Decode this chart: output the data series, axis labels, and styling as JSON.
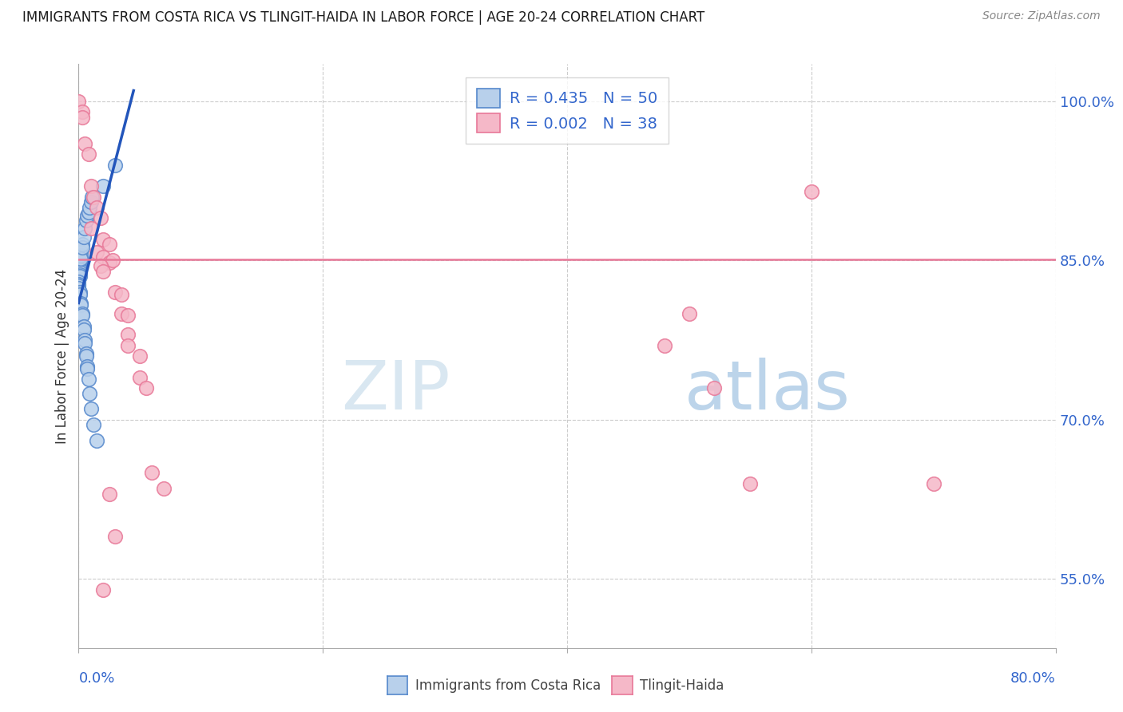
{
  "title": "IMMIGRANTS FROM COSTA RICA VS TLINGIT-HAIDA IN LABOR FORCE | AGE 20-24 CORRELATION CHART",
  "source": "Source: ZipAtlas.com",
  "ylabel": "In Labor Force | Age 20-24",
  "legend_blue_r": "R = 0.435",
  "legend_blue_n": "N = 50",
  "legend_pink_r": "R = 0.002",
  "legend_pink_n": "N = 38",
  "blue_face": "#b8d0eb",
  "blue_edge": "#5588cc",
  "pink_face": "#f5b8c8",
  "pink_edge": "#e87898",
  "blue_line_color": "#2255bb",
  "pink_line_color": "#e87898",
  "blue_scatter": [
    [
      0.0,
      0.84
    ],
    [
      0.0,
      0.838
    ],
    [
      0.0,
      0.836
    ],
    [
      0.0,
      0.834
    ],
    [
      0.001,
      0.85
    ],
    [
      0.001,
      0.848
    ],
    [
      0.001,
      0.845
    ],
    [
      0.001,
      0.843
    ],
    [
      0.001,
      0.841
    ],
    [
      0.001,
      0.839
    ],
    [
      0.001,
      0.837
    ],
    [
      0.001,
      0.835
    ],
    [
      0.002,
      0.858
    ],
    [
      0.002,
      0.855
    ],
    [
      0.002,
      0.852
    ],
    [
      0.003,
      0.865
    ],
    [
      0.003,
      0.862
    ],
    [
      0.004,
      0.872
    ],
    [
      0.005,
      0.88
    ],
    [
      0.006,
      0.888
    ],
    [
      0.007,
      0.892
    ],
    [
      0.008,
      0.895
    ],
    [
      0.009,
      0.9
    ],
    [
      0.01,
      0.905
    ],
    [
      0.011,
      0.91
    ],
    [
      0.0,
      0.83
    ],
    [
      0.0,
      0.828
    ],
    [
      0.0,
      0.826
    ],
    [
      0.0,
      0.824
    ],
    [
      0.001,
      0.82
    ],
    [
      0.001,
      0.818
    ],
    [
      0.002,
      0.81
    ],
    [
      0.002,
      0.808
    ],
    [
      0.003,
      0.8
    ],
    [
      0.003,
      0.798
    ],
    [
      0.004,
      0.788
    ],
    [
      0.004,
      0.785
    ],
    [
      0.005,
      0.775
    ],
    [
      0.005,
      0.772
    ],
    [
      0.006,
      0.762
    ],
    [
      0.006,
      0.76
    ],
    [
      0.007,
      0.75
    ],
    [
      0.007,
      0.748
    ],
    [
      0.008,
      0.738
    ],
    [
      0.009,
      0.725
    ],
    [
      0.01,
      0.71
    ],
    [
      0.012,
      0.695
    ],
    [
      0.015,
      0.68
    ],
    [
      0.02,
      0.92
    ],
    [
      0.03,
      0.94
    ]
  ],
  "pink_scatter": [
    [
      0.0,
      1.0
    ],
    [
      0.003,
      0.99
    ],
    [
      0.003,
      0.985
    ],
    [
      0.005,
      0.96
    ],
    [
      0.008,
      0.95
    ],
    [
      0.01,
      0.92
    ],
    [
      0.012,
      0.91
    ],
    [
      0.015,
      0.9
    ],
    [
      0.018,
      0.89
    ],
    [
      0.01,
      0.88
    ],
    [
      0.02,
      0.87
    ],
    [
      0.025,
      0.865
    ],
    [
      0.015,
      0.858
    ],
    [
      0.02,
      0.853
    ],
    [
      0.025,
      0.848
    ],
    [
      0.028,
      0.85
    ],
    [
      0.018,
      0.845
    ],
    [
      0.02,
      0.84
    ],
    [
      0.03,
      0.82
    ],
    [
      0.035,
      0.818
    ],
    [
      0.035,
      0.8
    ],
    [
      0.04,
      0.798
    ],
    [
      0.04,
      0.78
    ],
    [
      0.04,
      0.77
    ],
    [
      0.05,
      0.76
    ],
    [
      0.05,
      0.74
    ],
    [
      0.055,
      0.73
    ],
    [
      0.06,
      0.65
    ],
    [
      0.07,
      0.635
    ],
    [
      0.025,
      0.63
    ],
    [
      0.03,
      0.59
    ],
    [
      0.02,
      0.54
    ],
    [
      0.48,
      0.77
    ],
    [
      0.6,
      0.915
    ],
    [
      0.5,
      0.8
    ],
    [
      0.52,
      0.73
    ],
    [
      0.55,
      0.64
    ],
    [
      0.7,
      0.64
    ]
  ],
  "xmin": 0.0,
  "xmax": 0.8,
  "ymin": 0.485,
  "ymax": 1.035,
  "pink_hline_y": 0.851,
  "blue_trendline_x": [
    0.0,
    0.045
  ],
  "blue_trendline_y": [
    0.81,
    1.01
  ],
  "yticks": [
    1.0,
    0.85,
    0.7,
    0.55
  ],
  "ytick_labels": [
    "100.0%",
    "85.0%",
    "70.0%",
    "55.0%"
  ],
  "xtick_positions": [
    0.0,
    0.2,
    0.4,
    0.6,
    0.8
  ],
  "grid_color": "#cccccc",
  "bg_color": "#ffffff",
  "title_color": "#1a1a1a",
  "source_color": "#888888",
  "tick_color": "#3366cc",
  "watermark_zip": "ZIP",
  "watermark_atlas": "atlas",
  "watermark_color_zip": "#d8e8f5",
  "watermark_color_atlas": "#b8d8f0"
}
